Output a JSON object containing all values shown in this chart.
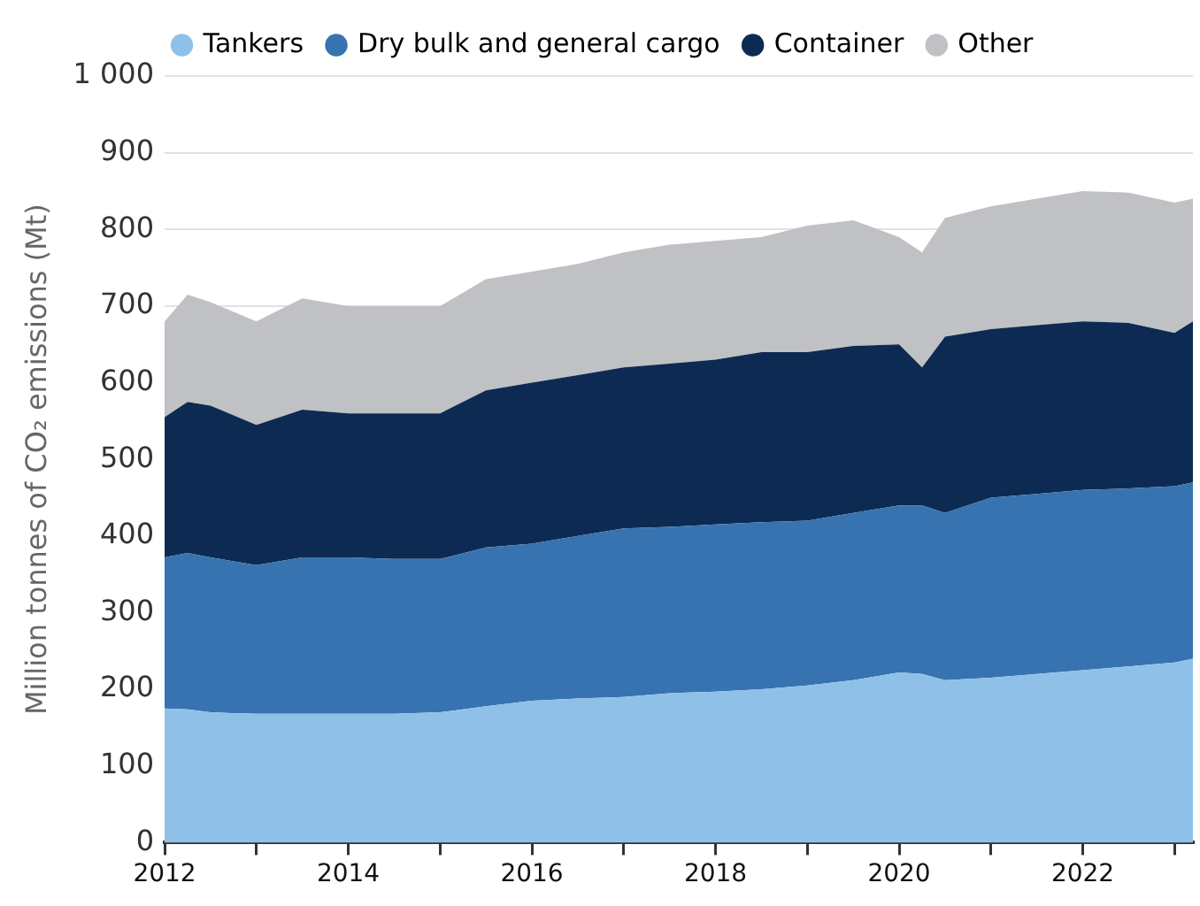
{
  "chart_data": {
    "type": "area",
    "stacked": true,
    "ylabel": "Million tonnes of CO₂ emissions (Mt)",
    "x": [
      2012,
      2012.25,
      2012.5,
      2013,
      2013.5,
      2014,
      2014.5,
      2015,
      2015.5,
      2016,
      2016.5,
      2017,
      2017.5,
      2018,
      2018.5,
      2019,
      2019.5,
      2020,
      2020.25,
      2020.5,
      2021,
      2021.5,
      2022,
      2022.5,
      2023,
      2023.2
    ],
    "series": [
      {
        "name": "Tankers",
        "color": "#8fc1e8",
        "values": [
          175,
          174,
          170,
          168,
          168,
          168,
          168,
          170,
          178,
          185,
          188,
          190,
          195,
          197,
          200,
          205,
          212,
          222,
          220,
          212,
          215,
          220,
          225,
          230,
          235,
          240
        ]
      },
      {
        "name": "Dry bulk and general cargo",
        "color": "#3773b0",
        "values": [
          197,
          204,
          202,
          194,
          204,
          204,
          202,
          200,
          207,
          205,
          212,
          220,
          217,
          218,
          218,
          215,
          218,
          218,
          220,
          218,
          235,
          235,
          235,
          232,
          230,
          230
        ]
      },
      {
        "name": "Container",
        "color": "#0d2b52",
        "values": [
          183,
          197,
          198,
          183,
          193,
          188,
          190,
          190,
          205,
          210,
          210,
          210,
          213,
          215,
          222,
          220,
          218,
          210,
          180,
          230,
          220,
          220,
          220,
          216,
          200,
          210
        ]
      },
      {
        "name": "Other",
        "color": "#c0c1c4",
        "values": [
          125,
          140,
          135,
          135,
          145,
          140,
          140,
          140,
          145,
          145,
          145,
          150,
          155,
          155,
          150,
          165,
          164,
          140,
          150,
          155,
          160,
          165,
          170,
          170,
          170,
          160
        ]
      }
    ],
    "xlim": [
      2012,
      2023.2
    ],
    "xticks": [
      2012,
      {
        "value": 2013,
        "label": null
      },
      2014,
      {
        "value": 2015,
        "label": null
      },
      2016,
      {
        "value": 2017,
        "label": null
      },
      2018,
      {
        "value": 2019,
        "label": null
      },
      2020,
      {
        "value": 2021,
        "label": null
      },
      2022,
      {
        "value": 2023,
        "label": null
      }
    ],
    "ylim": [
      0,
      1000
    ],
    "yticks": [
      0,
      100,
      200,
      300,
      400,
      500,
      600,
      700,
      800,
      900,
      {
        "value": 1000,
        "label": "1 000"
      }
    ],
    "grid": "y",
    "legend": "top"
  }
}
